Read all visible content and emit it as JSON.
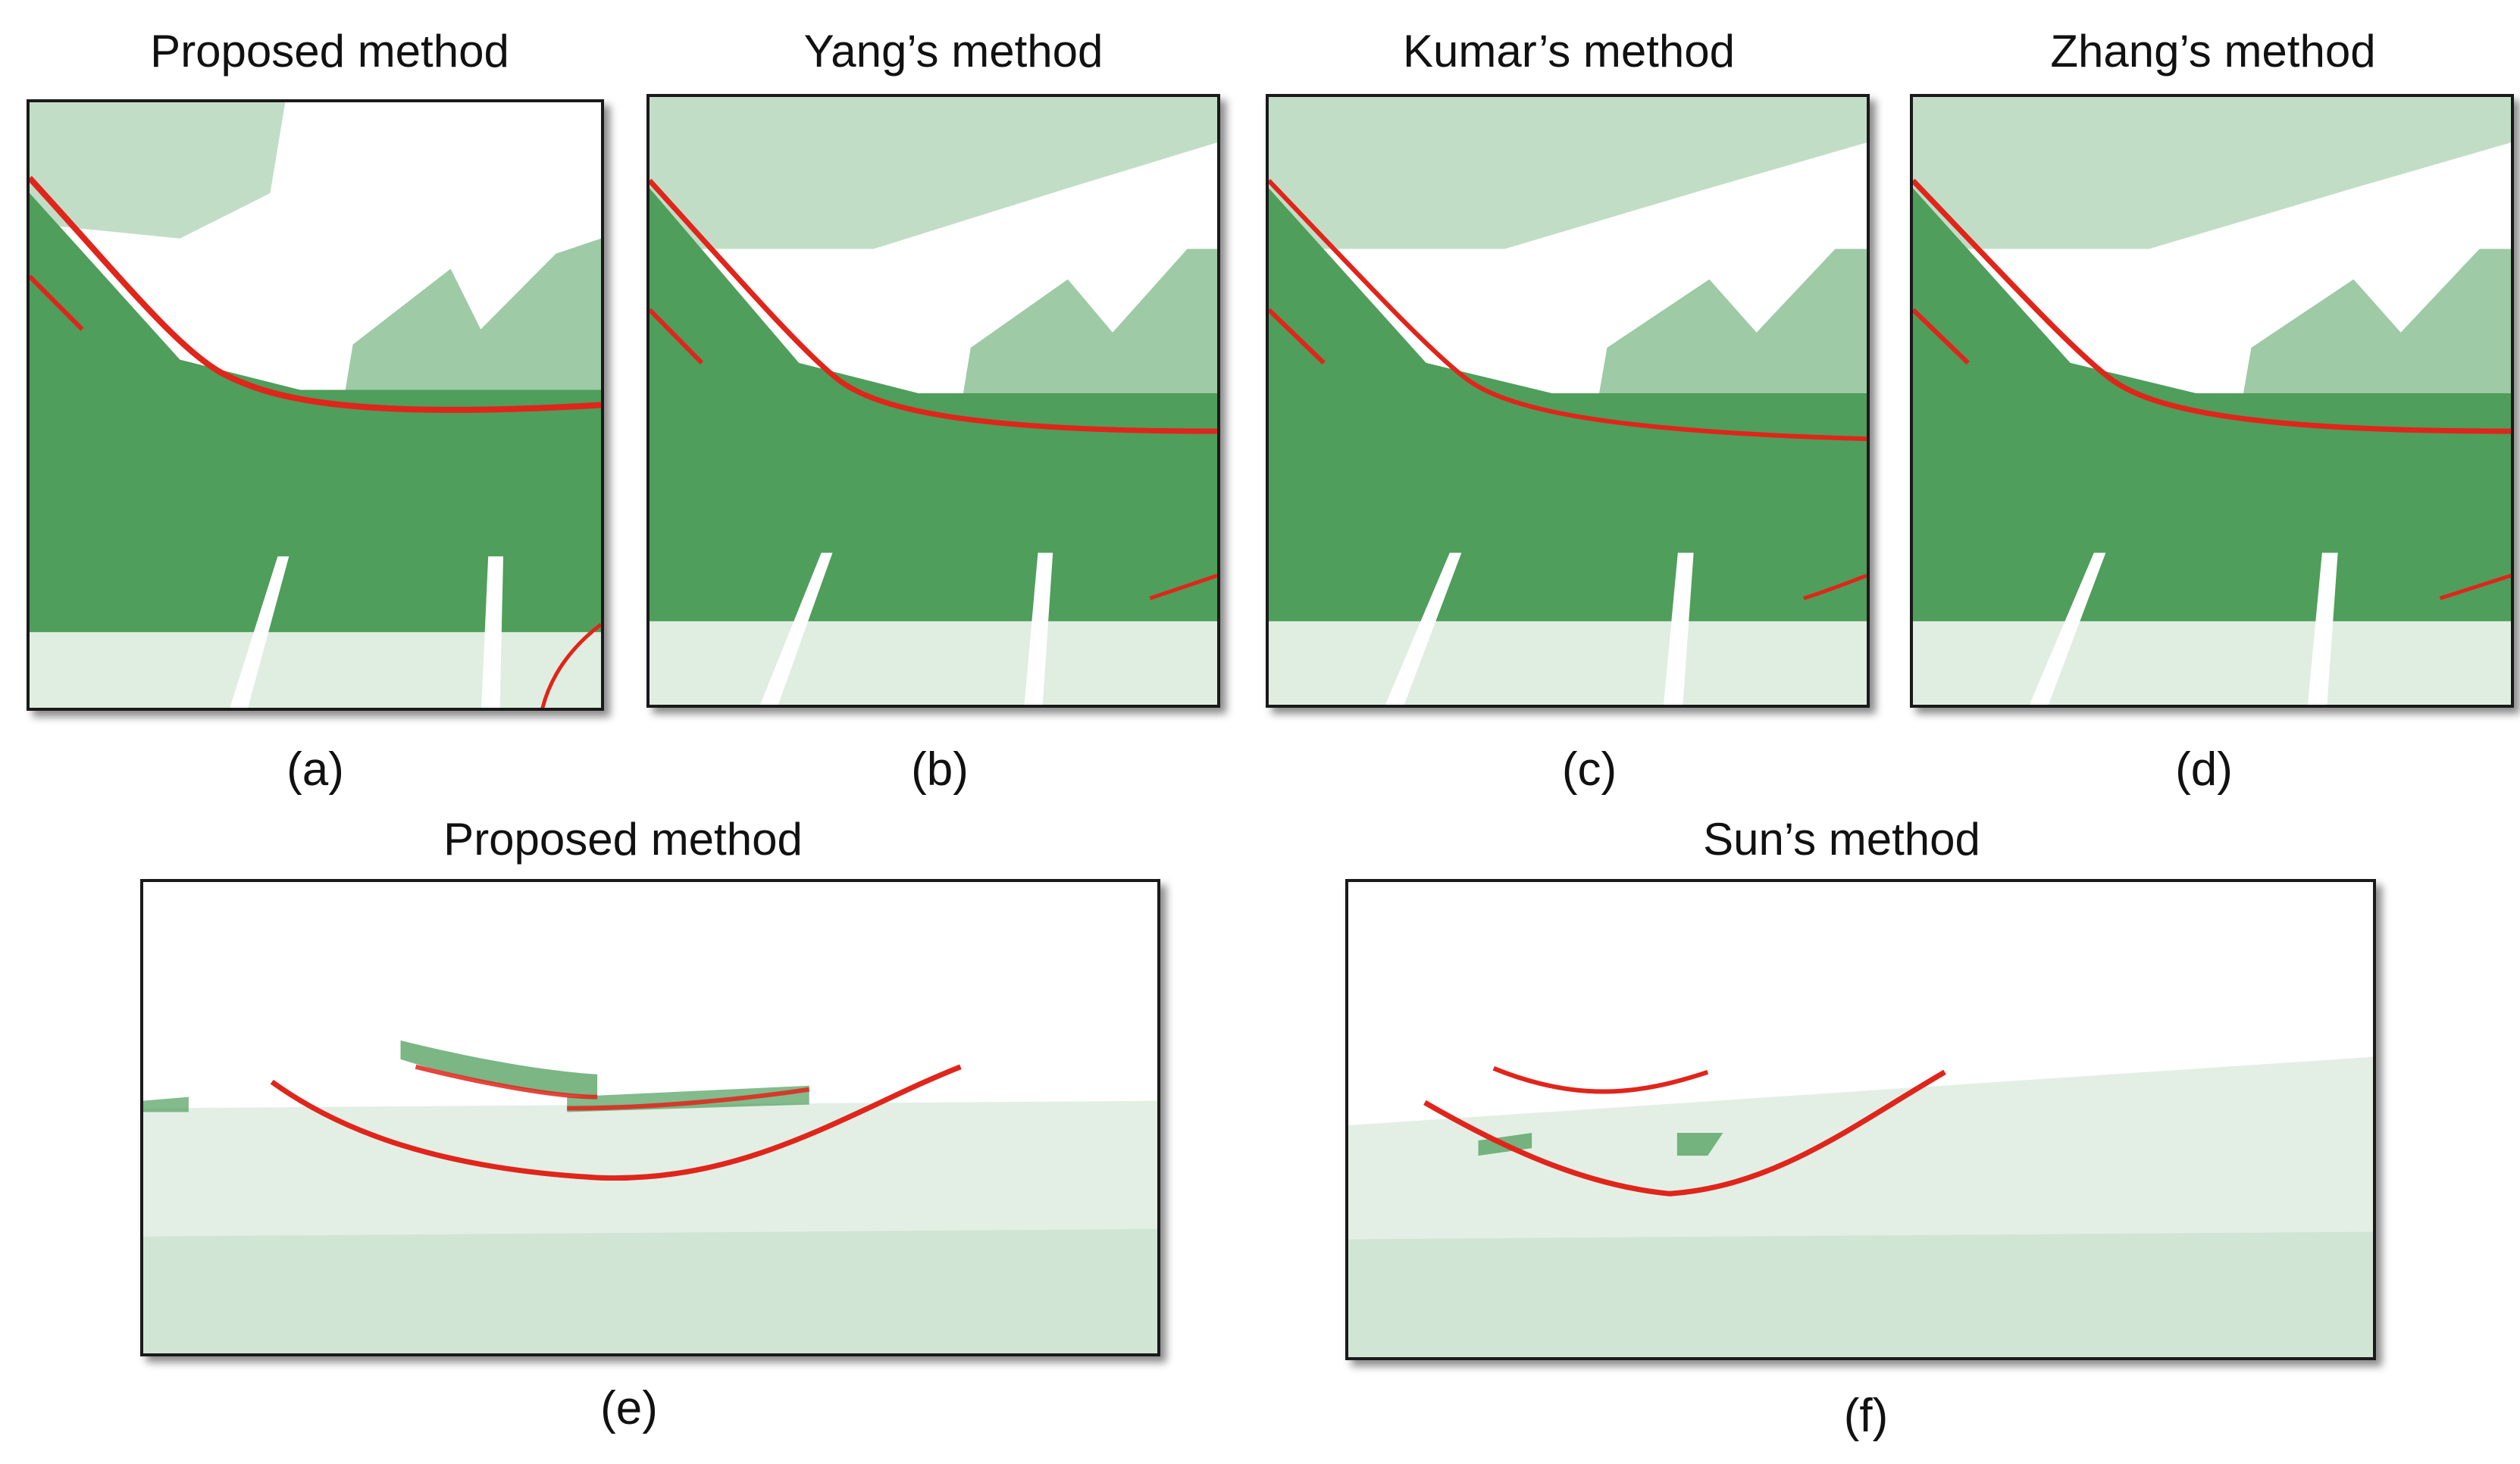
{
  "figure": {
    "panels": [
      {
        "id": "a",
        "title": "Proposed method",
        "label": "(a)"
      },
      {
        "id": "b",
        "title": "Yang’s method",
        "label": "(b)"
      },
      {
        "id": "c",
        "title": "Kumar’s method",
        "label": "(c)"
      },
      {
        "id": "d",
        "title": "Zhang’s method",
        "label": "(d)"
      },
      {
        "id": "e",
        "title": "Proposed method",
        "label": "(e)"
      },
      {
        "id": "f",
        "title": "Sun’s method",
        "label": "(f)"
      }
    ],
    "colors": {
      "ground_points": "#4f9e5b",
      "detected_curb": "#e0251b",
      "background": "#ffffff",
      "frame": "#1a1a1a"
    }
  }
}
